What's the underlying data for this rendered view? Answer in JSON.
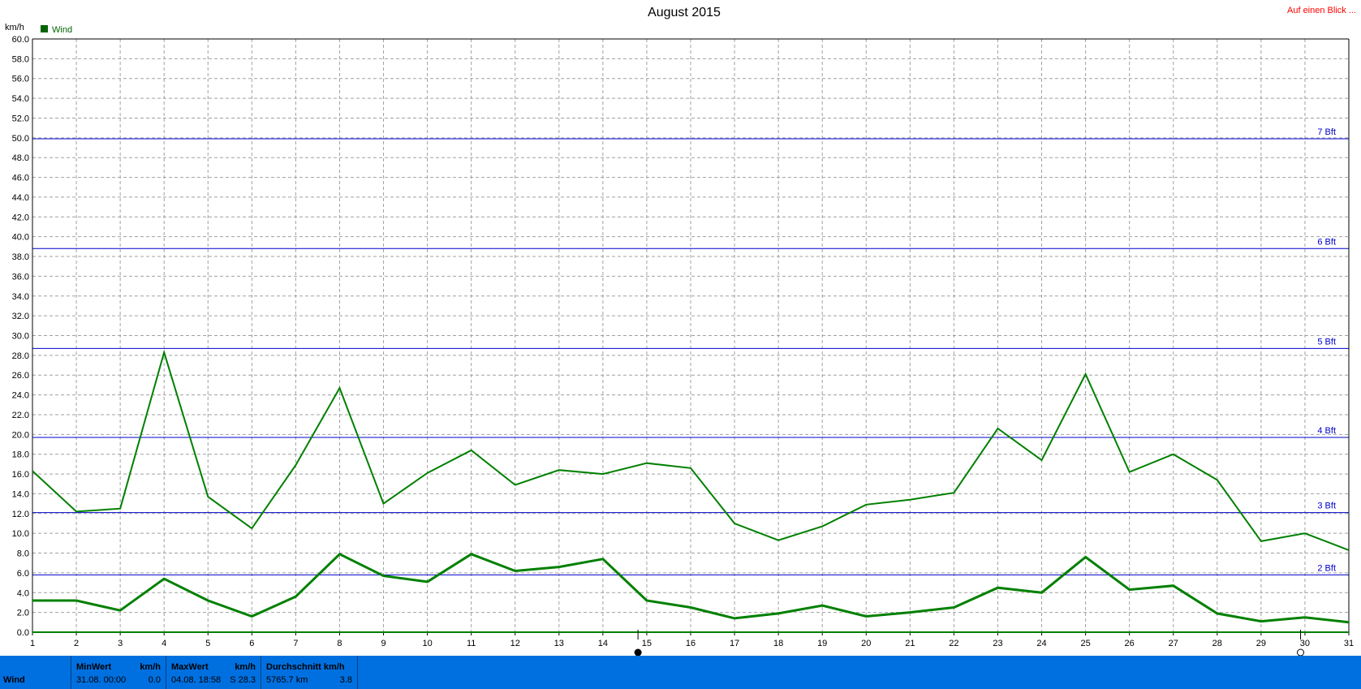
{
  "chart_data": {
    "type": "line",
    "title": "August 2015",
    "ylabel": "km/h",
    "ylim": [
      0,
      60
    ],
    "ytick_labels": [
      "0.0",
      "2.0",
      "4.0",
      "6.0",
      "8.0",
      "10.0",
      "12.0",
      "14.0",
      "16.0",
      "18.0",
      "20.0",
      "22.0",
      "24.0",
      "26.0",
      "28.0",
      "30.0",
      "32.0",
      "34.0",
      "36.0",
      "38.0",
      "40.0",
      "42.0",
      "44.0",
      "46.0",
      "48.0",
      "50.0",
      "52.0",
      "54.0",
      "56.0",
      "58.0",
      "60.0"
    ],
    "x": [
      1,
      2,
      3,
      4,
      5,
      6,
      7,
      8,
      9,
      10,
      11,
      12,
      13,
      14,
      15,
      16,
      17,
      18,
      19,
      20,
      21,
      22,
      23,
      24,
      25,
      26,
      27,
      28,
      29,
      30,
      31
    ],
    "xtick_labels": [
      "1",
      "2",
      "3",
      "4",
      "5",
      "6",
      "7",
      "8",
      "9",
      "10",
      "11",
      "12",
      "13",
      "14",
      "15",
      "16",
      "17",
      "18",
      "19",
      "20",
      "21",
      "22",
      "23",
      "24",
      "25",
      "26",
      "27",
      "28",
      "29",
      "30",
      "31"
    ],
    "grid": true,
    "legend": {
      "placement": "top-left",
      "entries": [
        "Wind"
      ]
    },
    "series": [
      {
        "name": "Wind",
        "role": "max",
        "color": "#008000",
        "values": [
          16.3,
          12.2,
          12.5,
          28.3,
          13.7,
          10.5,
          16.9,
          24.7,
          13.0,
          16.1,
          18.4,
          14.9,
          16.4,
          16.0,
          17.1,
          16.6,
          11.0,
          9.3,
          10.7,
          12.9,
          13.4,
          14.1,
          20.6,
          17.4,
          26.1,
          16.2,
          18.0,
          15.4,
          9.2,
          10.0,
          8.3
        ]
      },
      {
        "name": "Wind",
        "role": "avg",
        "color": "#008000",
        "values": [
          3.2,
          3.2,
          2.2,
          5.4,
          3.2,
          1.6,
          3.6,
          7.9,
          5.7,
          5.1,
          7.9,
          6.2,
          6.6,
          7.4,
          3.2,
          2.5,
          1.4,
          1.9,
          2.7,
          1.6,
          2.0,
          2.5,
          4.5,
          4.0,
          7.6,
          4.3,
          4.7,
          1.9,
          1.1,
          1.5,
          1.0
        ]
      }
    ],
    "annotations": [
      {
        "label": "2 Bft",
        "y": 5.8
      },
      {
        "label": "3 Bft",
        "y": 12.1
      },
      {
        "label": "4 Bft",
        "y": 19.7
      },
      {
        "label": "5 Bft",
        "y": 28.7
      },
      {
        "label": "6 Bft",
        "y": 38.8
      },
      {
        "label": "7 Bft",
        "y": 49.9
      }
    ],
    "moon_markers": [
      {
        "x": 14.8,
        "icon": "new-moon-icon"
      },
      {
        "x": 29.9,
        "icon": "full-moon-icon"
      }
    ]
  },
  "header": {
    "link_text": "Auf einen Blick ..."
  },
  "footer": {
    "name": "Wind",
    "min_head": "MinWert",
    "min_unit": "km/h",
    "min_date": "31.08.  00:00",
    "min_value": "0.0",
    "max_head": "MaxWert",
    "max_unit": "km/h",
    "max_date": "04.08.  18:58",
    "max_value": "S 28.3",
    "avg_head": "Durchschnitt km/h",
    "avg_dist": "5765.7 km",
    "avg_value": "3.8"
  },
  "colors": {
    "series": "#008000",
    "beaufort": "#0000cc",
    "footer_bg": "#0070e0",
    "link": "#ff0000"
  }
}
